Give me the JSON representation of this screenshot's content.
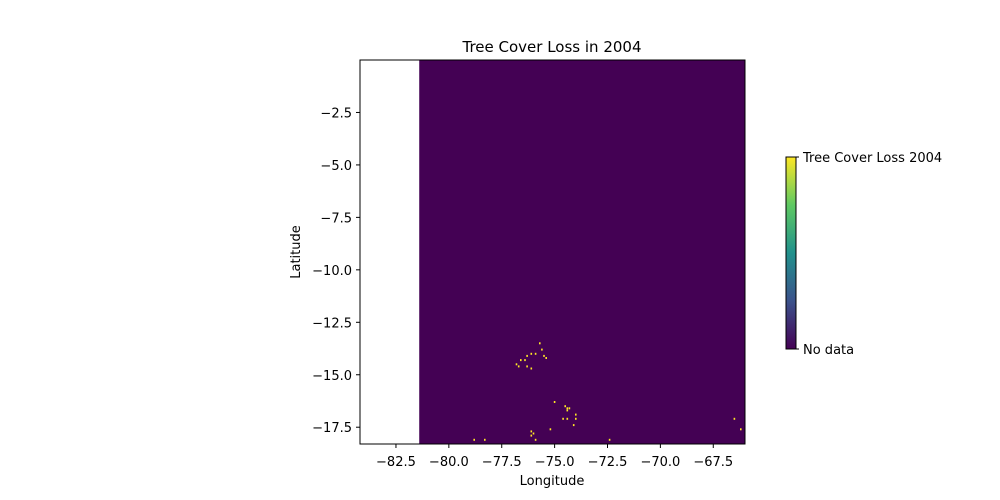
{
  "chart_data": {
    "type": "heatmap",
    "title": "Tree Cover Loss in 2004",
    "xlabel": "Longitude",
    "ylabel": "Latitude",
    "xlim": [
      -84.2,
      -66.0
    ],
    "ylim": [
      -18.3,
      0.0
    ],
    "xticks": [
      {
        "value": -82.5,
        "label": "−82.5"
      },
      {
        "value": -80.0,
        "label": "−80.0"
      },
      {
        "value": -77.5,
        "label": "−77.5"
      },
      {
        "value": -75.0,
        "label": "−75.0"
      },
      {
        "value": -72.5,
        "label": "−72.5"
      },
      {
        "value": -70.0,
        "label": "−70.0"
      },
      {
        "value": -67.5,
        "label": "−67.5"
      }
    ],
    "yticks": [
      {
        "value": -2.5,
        "label": "−2.5"
      },
      {
        "value": -5.0,
        "label": "−5.0"
      },
      {
        "value": -7.5,
        "label": "−7.5"
      },
      {
        "value": -10.0,
        "label": "−10.0"
      },
      {
        "value": -12.5,
        "label": "−12.5"
      },
      {
        "value": -15.0,
        "label": "−15.0"
      },
      {
        "value": -17.5,
        "label": "−17.5"
      }
    ],
    "data_extent": {
      "lon": [
        -81.4,
        -66.0
      ],
      "lat": [
        -18.3,
        0.0
      ]
    },
    "background_color": "#440154",
    "loss_color": "#fde725",
    "colorbar": {
      "colors": [
        "#440154",
        "#3b528b",
        "#21918c",
        "#5ec962",
        "#fde725"
      ],
      "tick_labels": [
        "No data",
        "Tree Cover Loss 2004"
      ]
    },
    "loss_pixels": [
      [
        -75.7,
        -13.5
      ],
      [
        -75.6,
        -13.8
      ],
      [
        -75.9,
        -14.0
      ],
      [
        -76.1,
        -14.0
      ],
      [
        -76.3,
        -14.1
      ],
      [
        -75.5,
        -14.1
      ],
      [
        -75.4,
        -14.2
      ],
      [
        -76.6,
        -14.3
      ],
      [
        -76.4,
        -14.3
      ],
      [
        -76.8,
        -14.5
      ],
      [
        -76.7,
        -14.6
      ],
      [
        -76.3,
        -14.6
      ],
      [
        -76.1,
        -14.7
      ],
      [
        -75.0,
        -16.3
      ],
      [
        -74.5,
        -16.5
      ],
      [
        -74.4,
        -16.6
      ],
      [
        -74.3,
        -16.6
      ],
      [
        -74.4,
        -16.7
      ],
      [
        -74.0,
        -16.9
      ],
      [
        -74.6,
        -17.1
      ],
      [
        -74.4,
        -17.1
      ],
      [
        -74.0,
        -17.1
      ],
      [
        -74.1,
        -17.4
      ],
      [
        -75.2,
        -17.6
      ],
      [
        -76.1,
        -17.7
      ],
      [
        -76.0,
        -17.8
      ],
      [
        -76.1,
        -17.9
      ],
      [
        -78.8,
        -18.1
      ],
      [
        -78.3,
        -18.1
      ],
      [
        -75.9,
        -18.1
      ],
      [
        -72.4,
        -18.1
      ],
      [
        -66.5,
        -17.1
      ],
      [
        -66.2,
        -17.6
      ]
    ]
  }
}
